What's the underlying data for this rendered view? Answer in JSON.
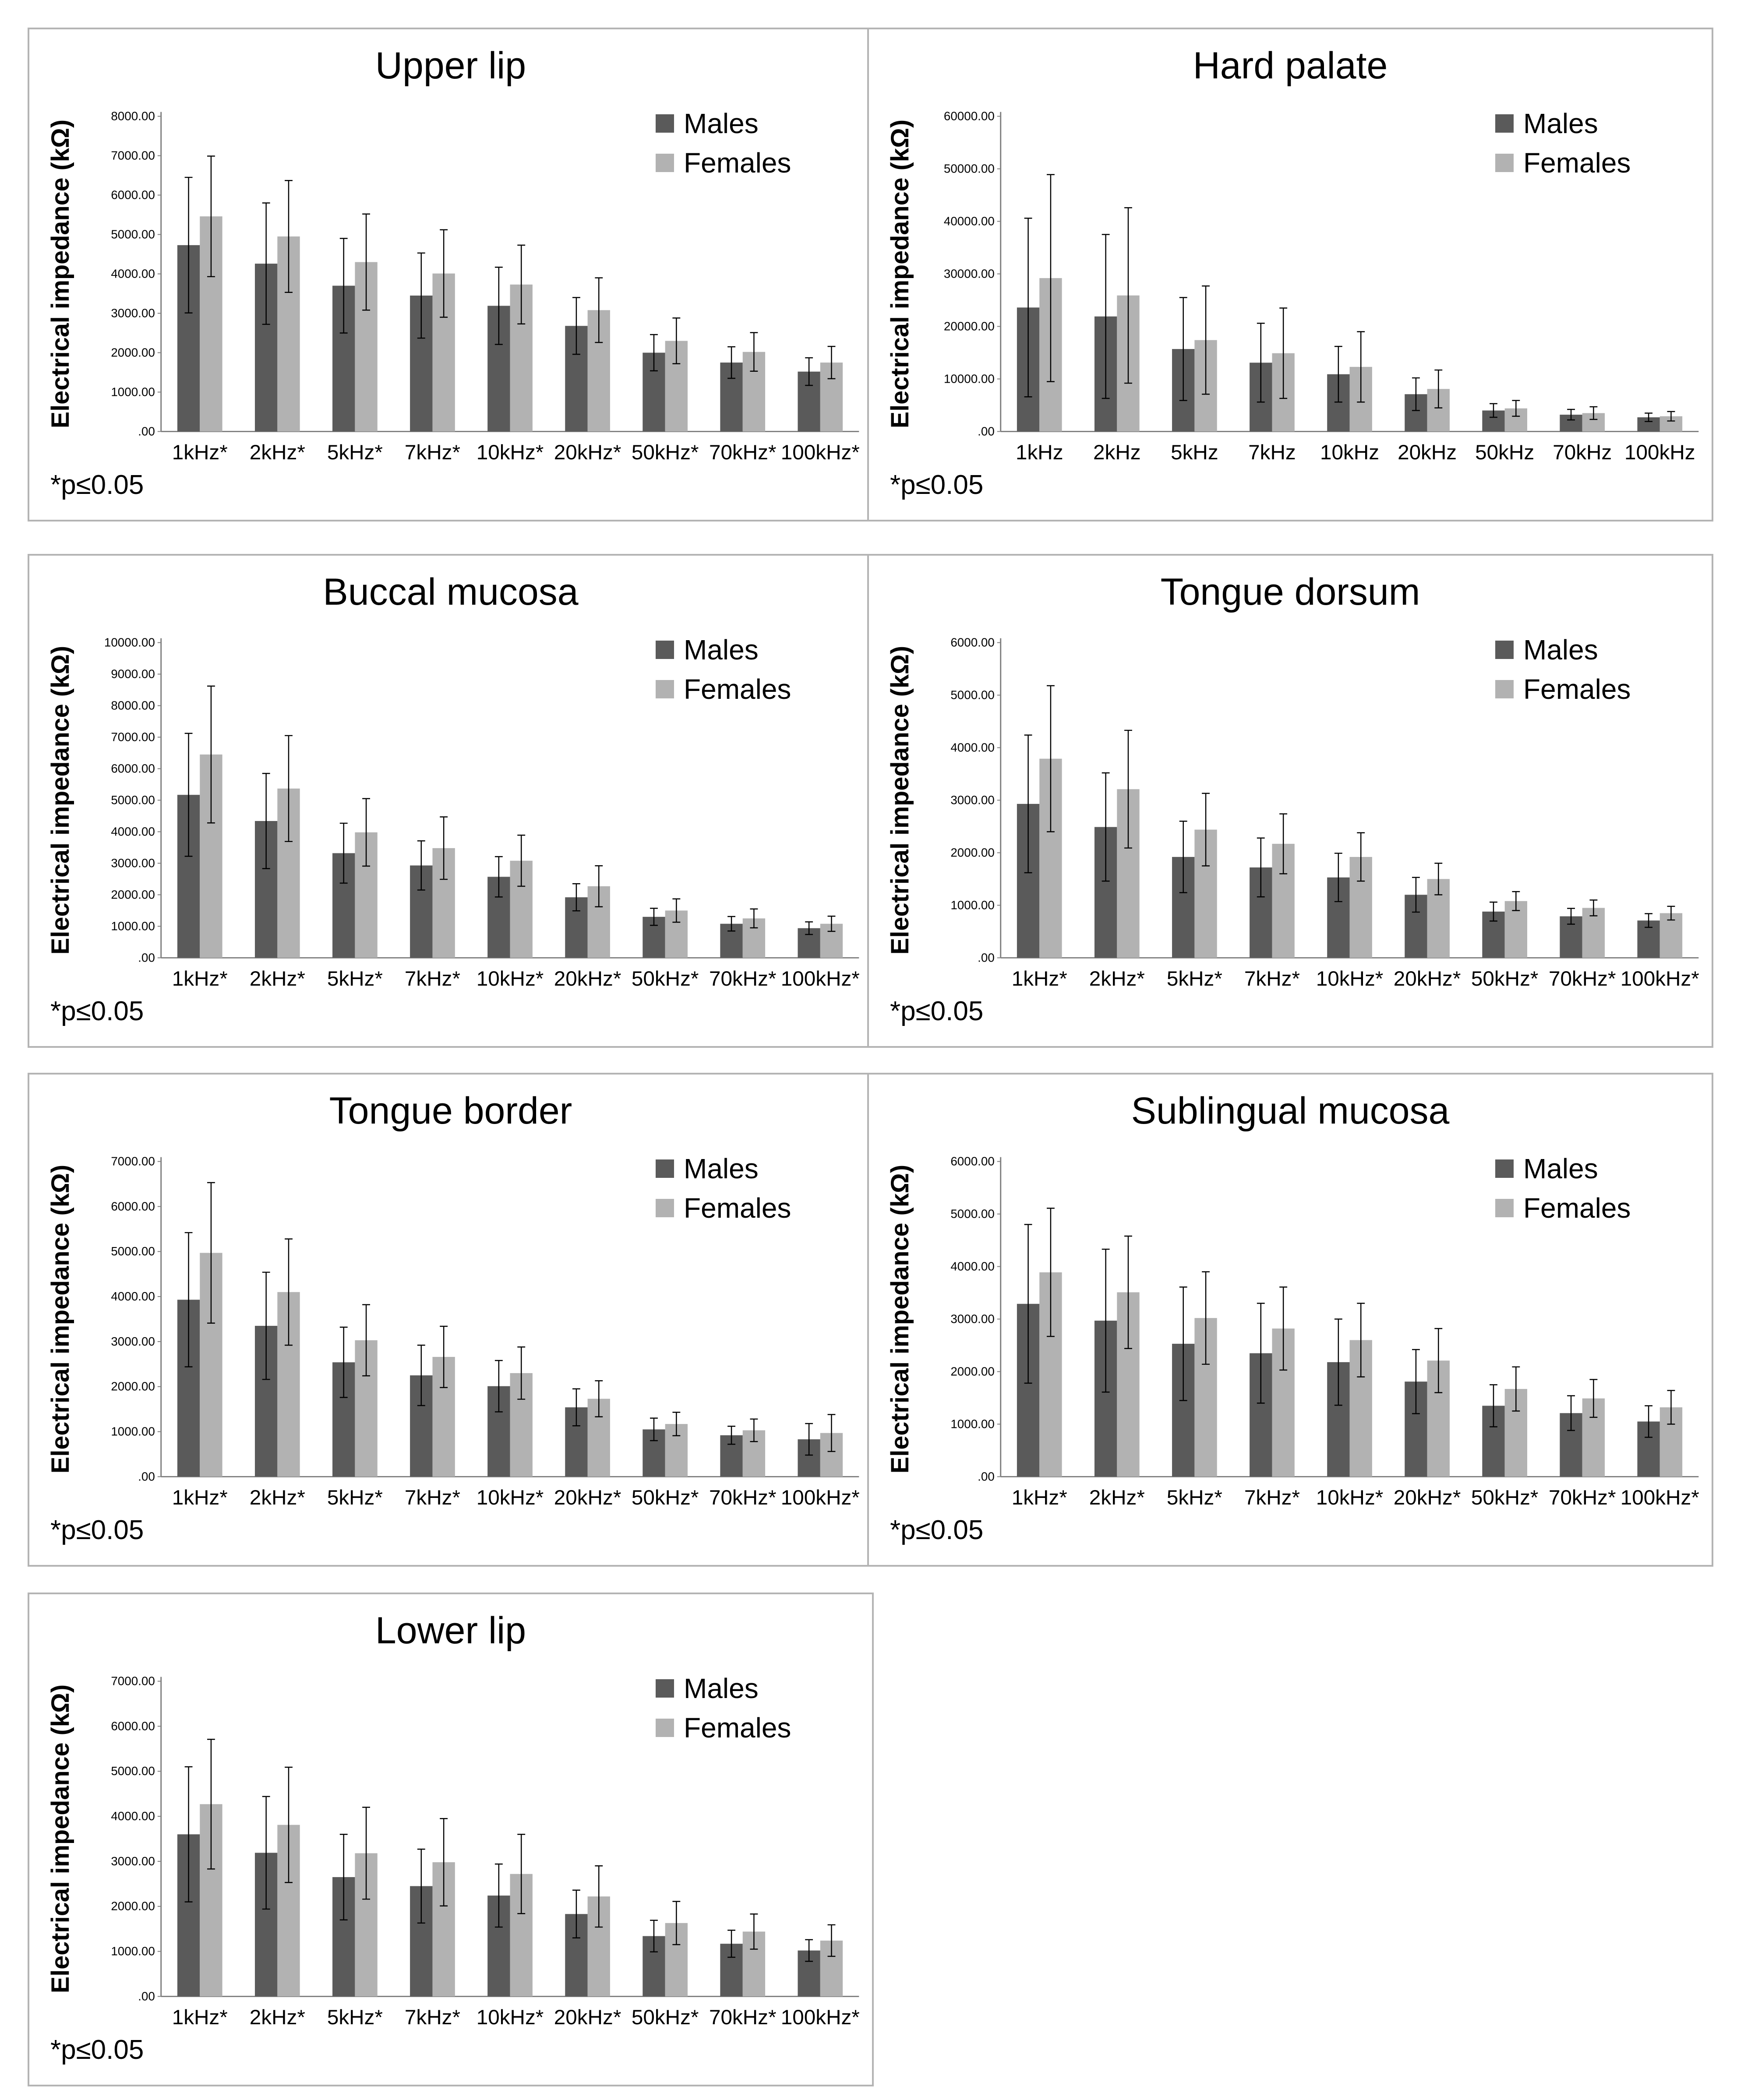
{
  "colors": {
    "males": "#5a5a5a",
    "females": "#b2b2b2",
    "error": "#000000",
    "axis": "#7f7f7f"
  },
  "chart_data": [
    {
      "type": "bar",
      "title": "Upper lip",
      "ylabel": "Electrical impedance (kΩ)",
      "ylim": [
        0,
        8000
      ],
      "yticks": [
        0,
        1000,
        2000,
        3000,
        4000,
        5000,
        6000,
        7000,
        8000
      ],
      "ytick_labels": [
        ".00",
        "1000.00",
        "2000.00",
        "3000.00",
        "4000.00",
        "5000.00",
        "6000.00",
        "7000.00",
        "8000.00"
      ],
      "categories": [
        "1kHz*",
        "2kHz*",
        "5kHz*",
        "7kHz*",
        "10kHz*",
        "20kHz*",
        "50kHz*",
        "70kHz*",
        "100kHz*"
      ],
      "series": [
        {
          "name": "Males",
          "values": [
            4730,
            4260,
            3700,
            3450,
            3190,
            2680,
            2000,
            1750,
            1520
          ],
          "errors": [
            1720,
            1540,
            1200,
            1080,
            980,
            720,
            460,
            400,
            350
          ]
        },
        {
          "name": "Females",
          "values": [
            5460,
            4950,
            4300,
            4010,
            3730,
            3080,
            2300,
            2020,
            1750
          ],
          "errors": [
            1530,
            1420,
            1220,
            1110,
            1000,
            820,
            580,
            490,
            410
          ]
        }
      ],
      "legend": [
        "Males",
        "Females"
      ],
      "note": "*p≤0.05"
    },
    {
      "type": "bar",
      "title": "Hard palate",
      "ylabel": "Electrical impedance (kΩ)",
      "ylim": [
        0,
        60000
      ],
      "yticks": [
        0,
        10000,
        20000,
        30000,
        40000,
        50000,
        60000
      ],
      "ytick_labels": [
        ".00",
        "10000.00",
        "20000.00",
        "30000.00",
        "40000.00",
        "50000.00",
        "60000.00"
      ],
      "categories": [
        "1kHz",
        "2kHz",
        "5kHz",
        "7kHz",
        "10kHz",
        "20kHz",
        "50kHz",
        "70kHz",
        "100kHz"
      ],
      "series": [
        {
          "name": "Males",
          "values": [
            23600,
            21900,
            15700,
            13100,
            10900,
            7100,
            4000,
            3200,
            2700
          ],
          "errors": [
            17000,
            15600,
            9800,
            7500,
            5300,
            3100,
            1300,
            1000,
            800
          ]
        },
        {
          "name": "Females",
          "values": [
            29200,
            25900,
            17400,
            14900,
            12300,
            8100,
            4400,
            3500,
            2900
          ],
          "errors": [
            19700,
            16700,
            10300,
            8600,
            6700,
            3600,
            1500,
            1200,
            900
          ]
        }
      ],
      "legend": [
        "Males",
        "Females"
      ],
      "note": "*p≤0.05"
    },
    {
      "type": "bar",
      "title": "Buccal mucosa",
      "ylabel": "Electrical impedance (kΩ)",
      "ylim": [
        0,
        10000
      ],
      "yticks": [
        0,
        1000,
        2000,
        3000,
        4000,
        5000,
        6000,
        7000,
        8000,
        9000,
        10000
      ],
      "ytick_labels": [
        ".00",
        "1000.00",
        "2000.00",
        "3000.00",
        "4000.00",
        "5000.00",
        "6000.00",
        "7000.00",
        "8000.00",
        "9000.00",
        "10000.00"
      ],
      "categories": [
        "1kHz*",
        "2kHz*",
        "5kHz*",
        "7kHz*",
        "10kHz*",
        "20kHz*",
        "50kHz*",
        "70kHz*",
        "100kHz*"
      ],
      "series": [
        {
          "name": "Males",
          "values": [
            5170,
            4340,
            3320,
            2930,
            2570,
            1920,
            1300,
            1080,
            940
          ],
          "errors": [
            1950,
            1510,
            950,
            780,
            640,
            430,
            270,
            230,
            200
          ]
        },
        {
          "name": "Females",
          "values": [
            6450,
            5370,
            3980,
            3480,
            3080,
            2270,
            1500,
            1250,
            1080
          ],
          "errors": [
            2170,
            1680,
            1070,
            990,
            810,
            650,
            370,
            300,
            240
          ]
        }
      ],
      "legend": [
        "Males",
        "Females"
      ],
      "note": "*p≤0.05"
    },
    {
      "type": "bar",
      "title": "Tongue dorsum",
      "ylabel": "Electrical impedance (kΩ)",
      "ylim": [
        0,
        6000
      ],
      "yticks": [
        0,
        1000,
        2000,
        3000,
        4000,
        5000,
        6000
      ],
      "ytick_labels": [
        ".00",
        "1000.00",
        "2000.00",
        "3000.00",
        "4000.00",
        "5000.00",
        "6000.00"
      ],
      "categories": [
        "1kHz*",
        "2kHz*",
        "5kHz*",
        "7kHz*",
        "10kHz*",
        "20kHz*",
        "50kHz*",
        "70kHz*",
        "100kHz*"
      ],
      "series": [
        {
          "name": "Males",
          "values": [
            2930,
            2490,
            1920,
            1720,
            1530,
            1200,
            880,
            790,
            710
          ],
          "errors": [
            1310,
            1030,
            680,
            560,
            460,
            330,
            180,
            150,
            130
          ]
        },
        {
          "name": "Females",
          "values": [
            3790,
            3210,
            2440,
            2170,
            1920,
            1500,
            1080,
            950,
            850
          ],
          "errors": [
            1390,
            1120,
            690,
            570,
            460,
            300,
            180,
            150,
            130
          ]
        }
      ],
      "legend": [
        "Males",
        "Females"
      ],
      "note": "*p≤0.05"
    },
    {
      "type": "bar",
      "title": "Tongue border",
      "ylabel": "Electrical impedance (kΩ)",
      "ylim": [
        0,
        7000
      ],
      "yticks": [
        0,
        1000,
        2000,
        3000,
        4000,
        5000,
        6000,
        7000
      ],
      "ytick_labels": [
        ".00",
        "1000.00",
        "2000.00",
        "3000.00",
        "4000.00",
        "5000.00",
        "6000.00",
        "7000.00"
      ],
      "categories": [
        "1kHz*",
        "2kHz*",
        "5kHz*",
        "7kHz*",
        "10kHz*",
        "20kHz*",
        "50kHz*",
        "70kHz*",
        "100kHz*"
      ],
      "series": [
        {
          "name": "Males",
          "values": [
            3930,
            3350,
            2540,
            2250,
            2010,
            1540,
            1050,
            920,
            830
          ],
          "errors": [
            1490,
            1190,
            780,
            670,
            570,
            410,
            250,
            200,
            350
          ]
        },
        {
          "name": "Females",
          "values": [
            4970,
            4100,
            3030,
            2660,
            2300,
            1730,
            1170,
            1030,
            970
          ],
          "errors": [
            1560,
            1180,
            790,
            680,
            580,
            400,
            260,
            250,
            410
          ]
        }
      ],
      "legend": [
        "Males",
        "Females"
      ],
      "note": "*p≤0.05"
    },
    {
      "type": "bar",
      "title": "Sublingual mucosa",
      "ylabel": "Electrical impedance (kΩ)",
      "ylim": [
        0,
        6000
      ],
      "yticks": [
        0,
        1000,
        2000,
        3000,
        4000,
        5000,
        6000
      ],
      "ytick_labels": [
        ".00",
        "1000.00",
        "2000.00",
        "3000.00",
        "4000.00",
        "5000.00",
        "6000.00"
      ],
      "categories": [
        "1kHz*",
        "2kHz*",
        "5kHz*",
        "7kHz*",
        "10kHz*",
        "20kHz*",
        "50kHz*",
        "70kHz*",
        "100kHz*"
      ],
      "series": [
        {
          "name": "Males",
          "values": [
            3290,
            2970,
            2530,
            2350,
            2180,
            1810,
            1350,
            1210,
            1050
          ],
          "errors": [
            1510,
            1360,
            1080,
            950,
            820,
            610,
            400,
            330,
            300
          ]
        },
        {
          "name": "Females",
          "values": [
            3890,
            3510,
            3020,
            2820,
            2600,
            2210,
            1670,
            1490,
            1320
          ],
          "errors": [
            1220,
            1070,
            880,
            790,
            700,
            610,
            420,
            360,
            320
          ]
        }
      ],
      "legend": [
        "Males",
        "Females"
      ],
      "note": "*p≤0.05"
    },
    {
      "type": "bar",
      "title": "Lower lip",
      "ylabel": "Electrical impedance (kΩ)",
      "ylim": [
        0,
        7000
      ],
      "yticks": [
        0,
        1000,
        2000,
        3000,
        4000,
        5000,
        6000,
        7000
      ],
      "ytick_labels": [
        ".00",
        "1000.00",
        "2000.00",
        "3000.00",
        "4000.00",
        "5000.00",
        "6000.00",
        "7000.00"
      ],
      "categories": [
        "1kHz*",
        "2kHz*",
        "5kHz*",
        "7kHz*",
        "10kHz*",
        "20kHz*",
        "50kHz*",
        "70kHz*",
        "100kHz*"
      ],
      "series": [
        {
          "name": "Males",
          "values": [
            3600,
            3190,
            2650,
            2450,
            2240,
            1830,
            1340,
            1170,
            1020
          ],
          "errors": [
            1500,
            1250,
            950,
            820,
            700,
            530,
            350,
            300,
            240
          ]
        },
        {
          "name": "Females",
          "values": [
            4270,
            3810,
            3180,
            2980,
            2720,
            2220,
            1630,
            1440,
            1240
          ],
          "errors": [
            1440,
            1280,
            1020,
            970,
            880,
            680,
            480,
            390,
            350
          ]
        }
      ],
      "legend": [
        "Males",
        "Females"
      ],
      "note": "*p≤0.05"
    }
  ]
}
